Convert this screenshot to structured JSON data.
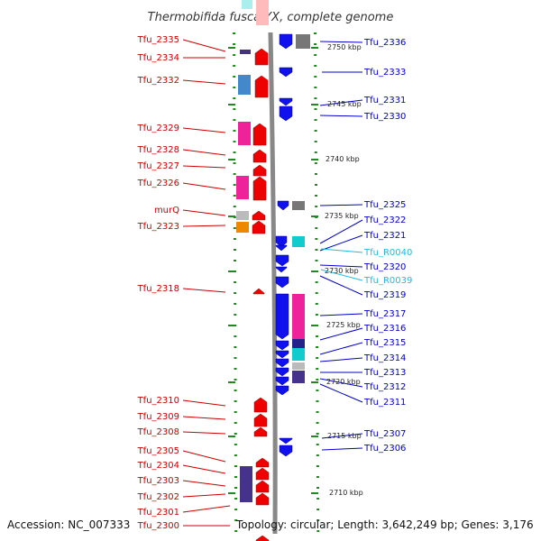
{
  "title": "Thermobifida fusca YX, complete genome",
  "footer": {
    "accession": "Accession: NC_007333",
    "topology": "Topology: circular; Length: 3,642,249 bp; Genes: 3,176"
  },
  "colors": {
    "left_label": "#cc0000",
    "right_label": "#0000cc",
    "rna_label": "#22bbdd",
    "forward_arrow": "#ee0000",
    "reverse_arrow": "#1111ee",
    "backbone": "#888888",
    "tick": "#228822"
  },
  "kbp_marks": [
    "2750 kbp",
    "2745 kbp",
    "2740 kbp",
    "2735 kbp",
    "2730 kbp",
    "2725 kbp",
    "2720 kbp",
    "2715 kbp",
    "2710 kbp"
  ],
  "left_labels": [
    "Tfu_2335",
    "Tfu_2334",
    "Tfu_2332",
    "Tfu_2329",
    "Tfu_2328",
    "Tfu_2327",
    "Tfu_2326",
    "murQ",
    "Tfu_2323",
    "Tfu_2318",
    "Tfu_2310",
    "Tfu_2309",
    "Tfu_2308",
    "Tfu_2305",
    "Tfu_2304",
    "Tfu_2303",
    "Tfu_2302",
    "Tfu_2301",
    "Tfu_2300"
  ],
  "right_labels": [
    "Tfu_2336",
    "Tfu_2333",
    "Tfu_2331",
    "Tfu_2330",
    "Tfu_2325",
    "Tfu_2322",
    "Tfu_2321",
    "Tfu_R0040",
    "Tfu_2320",
    "Tfu_R0039",
    "Tfu_2319",
    "Tfu_2317",
    "Tfu_2316",
    "Tfu_2315",
    "Tfu_2314",
    "Tfu_2313",
    "Tfu_2312",
    "Tfu_2311",
    "Tfu_2307",
    "Tfu_2306"
  ]
}
